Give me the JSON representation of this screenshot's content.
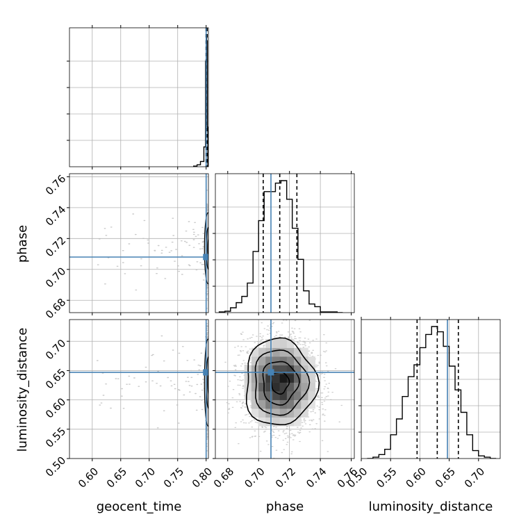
{
  "chart_data": {
    "type": "corner",
    "parameters": [
      "geocent_time",
      "phase",
      "luminosity_distance"
    ],
    "truth": {
      "geocent_time": 0.8,
      "phase": 0.708,
      "luminosity_distance": 0.647
    },
    "axes": {
      "geocent_time": {
        "label": "geocent_time",
        "lim": [
          0.56,
          0.804
        ],
        "ticks": [
          0.6,
          0.65,
          0.7,
          0.75,
          0.8
        ],
        "tick_labels": [
          "0.60",
          "0.65",
          "0.70",
          "0.75",
          "0.80"
        ]
      },
      "phase": {
        "label": "phase",
        "lim": [
          0.672,
          0.762
        ],
        "ticks": [
          0.68,
          0.7,
          0.72,
          0.74,
          0.76
        ],
        "tick_labels": [
          "0.68",
          "0.70",
          "0.72",
          "0.74",
          "0.76"
        ]
      },
      "luminosity_distance": {
        "label": "luminosity_distance",
        "lim": [
          0.5,
          0.737
        ],
        "ticks": [
          0.5,
          0.55,
          0.6,
          0.65,
          0.7
        ],
        "tick_labels": [
          "0.50",
          "0.55",
          "0.60",
          "0.65",
          "0.70"
        ]
      }
    },
    "histograms": {
      "geocent_time": {
        "bin_edges": [
          0.778,
          0.784,
          0.79,
          0.796,
          0.799,
          0.8,
          0.801,
          0.802,
          0.803
        ],
        "counts": [
          0.5,
          1.5,
          4,
          15,
          80,
          100,
          95,
          30
        ],
        "quantiles": [
          0.7998,
          0.8008,
          0.8018
        ]
      },
      "phase": {
        "bin_edges": [
          0.6745,
          0.6782,
          0.6818,
          0.6855,
          0.6891,
          0.6927,
          0.6964,
          0.7,
          0.7036,
          0.7073,
          0.7109,
          0.7145,
          0.7182,
          0.7218,
          0.7255,
          0.7291,
          0.7327,
          0.7364,
          0.74,
          0.7436,
          0.7473,
          0.7509,
          0.7545
        ],
        "counts": [
          0.5,
          1.0,
          3.5,
          7.2,
          11.7,
          21.3,
          44.1,
          66.3,
          87.2,
          87.2,
          93.3,
          95.1,
          81.7,
          60.8,
          38.4,
          15.7,
          6.2,
          4.3,
          0.5,
          0.5,
          0.5,
          0
        ],
        "quantiles": [
          0.703,
          0.7137,
          0.7248
        ]
      },
      "luminosity_distance": {
        "bin_edges": [
          0.51,
          0.52,
          0.53,
          0.54,
          0.55,
          0.56,
          0.57,
          0.58,
          0.59,
          0.6,
          0.61,
          0.62,
          0.63,
          0.64,
          0.65,
          0.66,
          0.67,
          0.68,
          0.69,
          0.7,
          0.71,
          0.72,
          0.73
        ],
        "counts": [
          0,
          1,
          3,
          7,
          18,
          30,
          47,
          62,
          71,
          84,
          94,
          100,
          96,
          85,
          70,
          52,
          35,
          18,
          6,
          2,
          1,
          0
        ],
        "quantiles": [
          0.5952,
          0.6296,
          0.6656
        ]
      }
    },
    "density_2d": {
      "phase_vs_luminosity_distance": {
        "center": [
          0.715,
          0.632
        ],
        "sigma": [
          0.0105,
          0.036
        ]
      },
      "geocent_time_vs_phase": {
        "center_x": 0.8007,
        "center_y": 0.7137
      },
      "geocent_time_vs_luminosity_distance": {
        "center_x": 0.8007,
        "center_y": 0.632
      }
    },
    "colors": {
      "truth": "#4682b4",
      "contour": "#000000",
      "grid": "#b0b0b0",
      "scatter": "#bdbdbd"
    }
  }
}
